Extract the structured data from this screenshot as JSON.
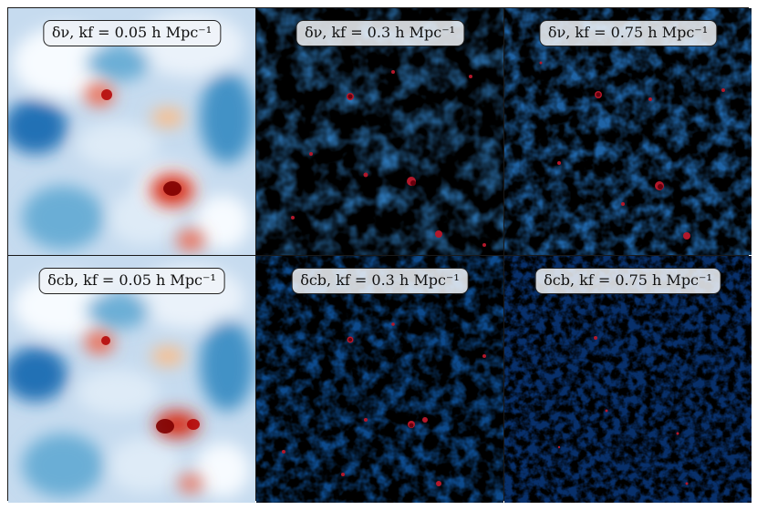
{
  "figure": {
    "panels": [
      {
        "id": "nu-005",
        "label": "δν, kf = 0.05 h Mpc⁻¹",
        "field": "neutrino",
        "scale": "smooth"
      },
      {
        "id": "nu-03",
        "label": "δν, kf = 0.3 h Mpc⁻¹",
        "field": "neutrino",
        "scale": "medium"
      },
      {
        "id": "nu-075",
        "label": "δν, kf = 0.75 h Mpc⁻¹",
        "field": "neutrino",
        "scale": "fine"
      },
      {
        "id": "cb-005",
        "label": "δcb, kf = 0.05 h Mpc⁻¹",
        "field": "cdm-baryon",
        "scale": "smooth"
      },
      {
        "id": "cb-03",
        "label": "δcb, kf = 0.3 h Mpc⁻¹",
        "field": "cdm-baryon",
        "scale": "medium"
      },
      {
        "id": "cb-075",
        "label": "δcb, kf = 0.75 h Mpc⁻¹",
        "field": "cdm-baryon",
        "scale": "fine"
      }
    ],
    "colormap": {
      "low": "#08306b",
      "mid": "#f7fbff",
      "high": "#67000d"
    }
  }
}
